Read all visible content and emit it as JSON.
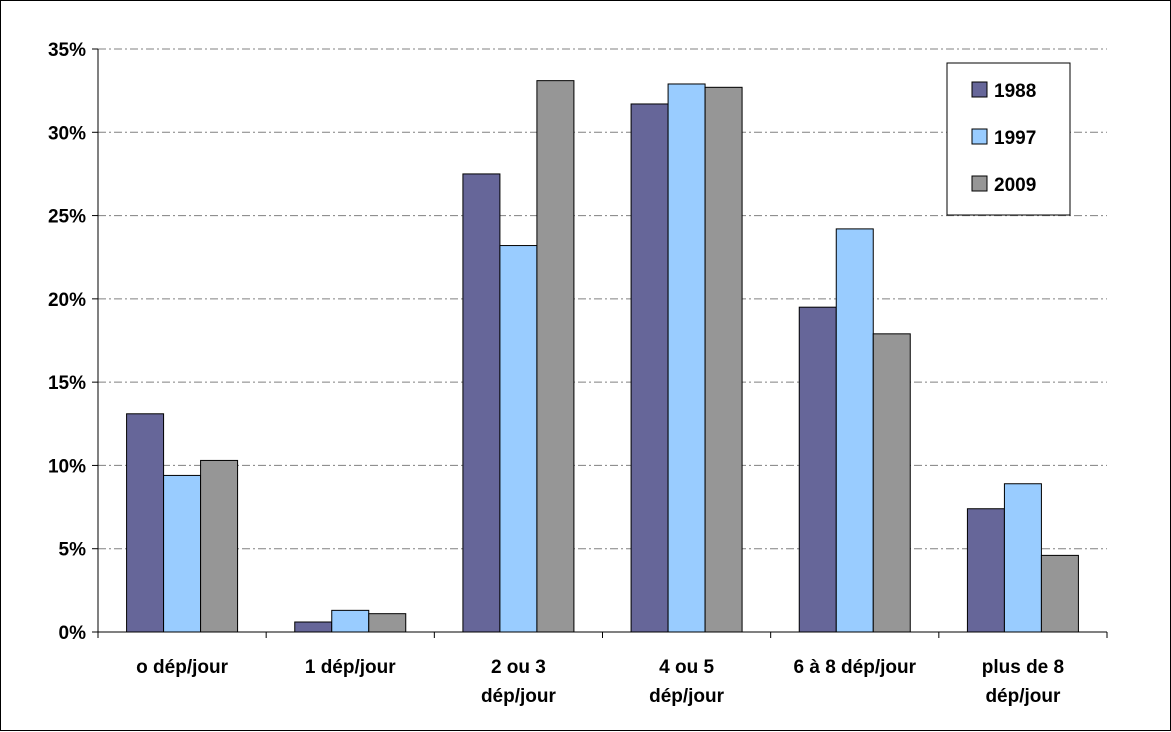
{
  "chart_data": {
    "type": "bar",
    "title": "",
    "xlabel": "",
    "ylabel": "",
    "ylim": [
      0,
      35
    ],
    "yticks": [
      0,
      5,
      10,
      15,
      20,
      25,
      30,
      35
    ],
    "ytick_labels": [
      "0%",
      "5%",
      "10%",
      "15%",
      "20%",
      "25%",
      "30%",
      "35%"
    ],
    "categories": [
      [
        "o dép/jour"
      ],
      [
        "1 dép/jour"
      ],
      [
        "2 ou 3",
        "dép/jour"
      ],
      [
        "4 ou 5",
        "dép/jour"
      ],
      [
        "6 à 8 dép/jour"
      ],
      [
        "plus de 8",
        "dép/jour"
      ]
    ],
    "series": [
      {
        "name": "1988",
        "color": "#666699",
        "values": [
          13.1,
          0.6,
          27.5,
          31.7,
          19.5,
          7.4
        ]
      },
      {
        "name": "1997",
        "color": "#99ccff",
        "values": [
          9.4,
          1.3,
          23.2,
          32.9,
          24.2,
          8.9
        ]
      },
      {
        "name": "2009",
        "color": "#969696",
        "values": [
          10.3,
          1.1,
          33.1,
          32.7,
          17.9,
          4.6
        ]
      }
    ],
    "grid": true,
    "legend": {
      "position": "top-right"
    }
  }
}
